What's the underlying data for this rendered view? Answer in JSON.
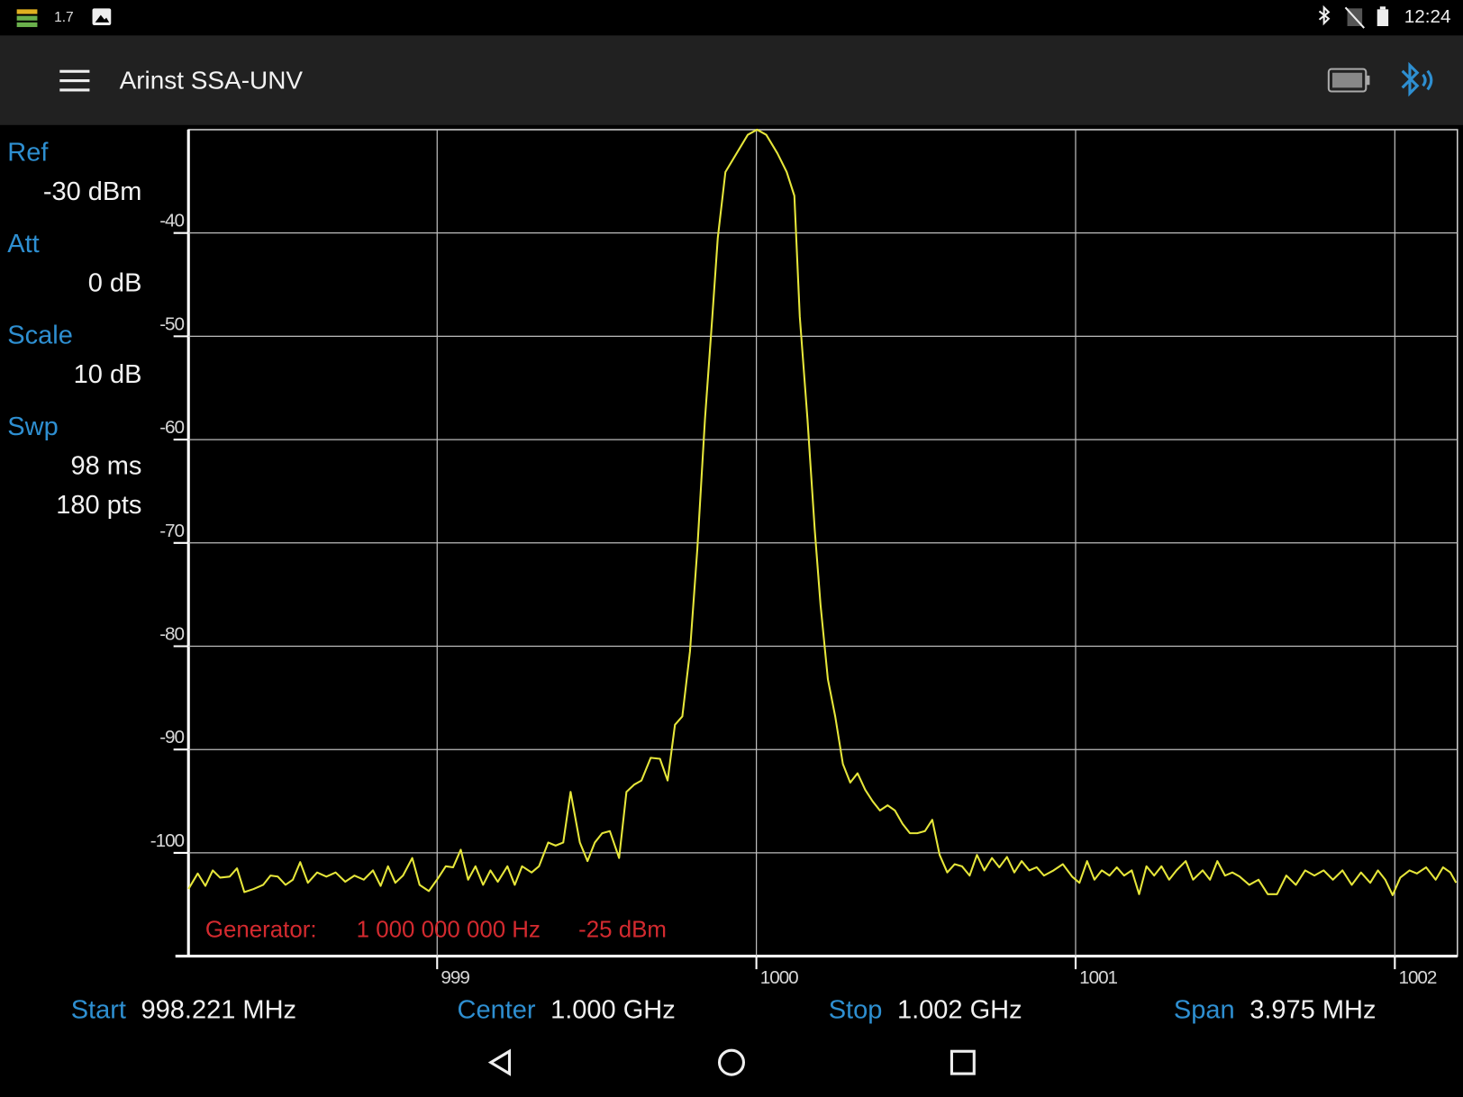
{
  "status_bar": {
    "left_text": "1.7",
    "time": "12:24"
  },
  "app_bar": {
    "title": "Arinst SSA-UNV"
  },
  "settings": [
    {
      "label": "Ref",
      "values": [
        "-30 dBm"
      ]
    },
    {
      "label": "Att",
      "values": [
        "0  dB"
      ]
    },
    {
      "label": "Scale",
      "values": [
        "10  dB"
      ]
    },
    {
      "label": "Swp",
      "values": [
        "98 ms",
        "180 pts"
      ]
    }
  ],
  "chart_data": {
    "type": "line",
    "color": "#e6e63a",
    "grid": true,
    "xlim": [
      998.221,
      1002.196
    ],
    "ylim": [
      -110,
      -30
    ],
    "xticks": [
      999,
      1000,
      1001,
      1002
    ],
    "yticks": [
      -40,
      -50,
      -60,
      -70,
      -80,
      -90,
      -100
    ],
    "annotations": [
      "Generator:",
      "1 000 000 000 Hz",
      "-25 dBm"
    ],
    "x": [
      998.221,
      998.25,
      998.274,
      998.297,
      998.32,
      998.35,
      998.373,
      998.396,
      998.425,
      998.455,
      998.478,
      998.501,
      998.525,
      998.548,
      998.571,
      998.595,
      998.624,
      998.653,
      998.682,
      998.712,
      998.741,
      998.77,
      998.799,
      998.823,
      998.846,
      998.869,
      998.893,
      998.922,
      998.945,
      998.974,
      999.004,
      999.027,
      999.05,
      999.074,
      999.097,
      999.12,
      999.144,
      999.167,
      999.19,
      999.22,
      999.243,
      999.266,
      999.296,
      999.319,
      999.348,
      999.371,
      999.395,
      999.418,
      999.447,
      999.471,
      999.494,
      999.517,
      999.541,
      999.57,
      999.593,
      999.617,
      999.64,
      999.669,
      999.698,
      999.722,
      999.745,
      999.768,
      999.792,
      999.815,
      999.839,
      999.862,
      999.879,
      999.903,
      999.938,
      999.973,
      1000.002,
      1000.031,
      1000.066,
      1000.095,
      1000.119,
      1000.136,
      1000.16,
      1000.183,
      1000.201,
      1000.224,
      1000.247,
      1000.271,
      1000.294,
      1000.317,
      1000.341,
      1000.364,
      1000.387,
      1000.411,
      1000.434,
      1000.458,
      1000.481,
      1000.504,
      1000.528,
      1000.551,
      1000.574,
      1000.598,
      1000.621,
      1000.644,
      1000.668,
      1000.691,
      1000.714,
      1000.738,
      1000.761,
      1000.785,
      1000.808,
      1000.831,
      1000.855,
      1000.878,
      1000.901,
      1000.931,
      1000.96,
      1000.989,
      1001.012,
      1001.036,
      1001.059,
      1001.082,
      1001.106,
      1001.129,
      1001.152,
      1001.176,
      1001.199,
      1001.222,
      1001.246,
      1001.269,
      1001.293,
      1001.316,
      1001.345,
      1001.368,
      1001.398,
      1001.421,
      1001.444,
      1001.468,
      1001.491,
      1001.514,
      1001.544,
      1001.573,
      1001.602,
      1001.631,
      1001.66,
      1001.69,
      1001.719,
      1001.748,
      1001.777,
      1001.806,
      1001.836,
      1001.865,
      1001.894,
      1001.923,
      1001.947,
      1001.97,
      1001.993,
      1002.017,
      1002.046,
      1002.069,
      1002.098,
      1002.128,
      1002.151,
      1002.174,
      1002.192
    ],
    "values": [
      -103.5,
      -102.0,
      -103.2,
      -101.7,
      -102.4,
      -102.3,
      -101.5,
      -103.8,
      -103.5,
      -103.1,
      -102.2,
      -102.3,
      -103.1,
      -102.6,
      -100.9,
      -102.9,
      -101.9,
      -102.3,
      -101.9,
      -102.8,
      -102.2,
      -102.6,
      -101.7,
      -103.2,
      -101.3,
      -102.9,
      -102.2,
      -100.5,
      -103.1,
      -103.7,
      -102.4,
      -101.3,
      -101.4,
      -99.7,
      -102.6,
      -101.3,
      -103.1,
      -101.7,
      -102.8,
      -101.3,
      -103.1,
      -101.3,
      -101.9,
      -101.3,
      -99.0,
      -99.3,
      -99.0,
      -94.1,
      -99.0,
      -100.8,
      -99.0,
      -98.1,
      -97.9,
      -100.5,
      -94.1,
      -93.4,
      -93.0,
      -90.8,
      -90.9,
      -93.0,
      -87.6,
      -86.8,
      -80.5,
      -70.6,
      -58.0,
      -48.1,
      -40.5,
      -34.1,
      -32.3,
      -30.5,
      -30.0,
      -30.5,
      -32.3,
      -34.1,
      -36.4,
      -48.1,
      -58.0,
      -68.8,
      -76.0,
      -83.2,
      -86.8,
      -91.4,
      -93.2,
      -92.3,
      -93.9,
      -95.0,
      -95.9,
      -95.4,
      -95.9,
      -97.2,
      -98.1,
      -98.1,
      -97.9,
      -96.8,
      -100.2,
      -101.9,
      -101.1,
      -101.3,
      -102.2,
      -100.2,
      -101.7,
      -100.5,
      -101.4,
      -100.4,
      -101.9,
      -100.8,
      -101.7,
      -101.4,
      -102.2,
      -101.7,
      -101.1,
      -102.3,
      -102.9,
      -100.8,
      -102.6,
      -101.7,
      -102.2,
      -101.4,
      -102.2,
      -101.7,
      -104.0,
      -101.3,
      -102.2,
      -101.3,
      -102.6,
      -101.7,
      -100.8,
      -102.6,
      -101.7,
      -102.6,
      -100.8,
      -102.2,
      -101.9,
      -102.3,
      -103.1,
      -102.6,
      -104.0,
      -104.0,
      -102.2,
      -103.1,
      -101.7,
      -102.2,
      -101.7,
      -102.6,
      -101.7,
      -103.1,
      -101.9,
      -102.9,
      -101.7,
      -102.6,
      -104.1,
      -102.4,
      -101.7,
      -102.0,
      -101.4,
      -102.6,
      -101.4,
      -101.9,
      -102.9
    ]
  },
  "footer": [
    {
      "label": "Start",
      "value": "998.221 MHz"
    },
    {
      "label": "Center",
      "value": "1.000 GHz"
    },
    {
      "label": "Stop",
      "value": "1.002 GHz"
    },
    {
      "label": "Span",
      "value": "3.975 MHz"
    }
  ]
}
